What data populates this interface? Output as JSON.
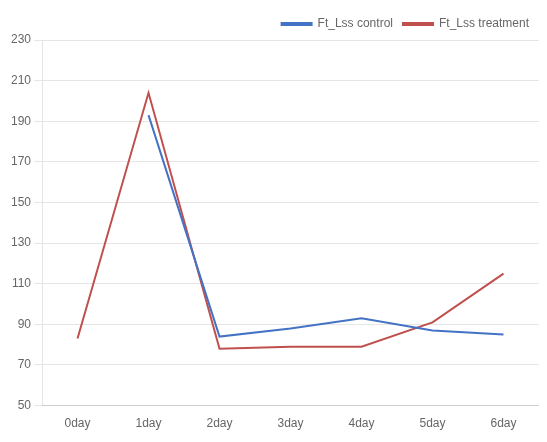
{
  "chart_data": {
    "type": "line",
    "categories": [
      "0day",
      "1day",
      "2day",
      "3day",
      "4day",
      "5day",
      "6day"
    ],
    "series": [
      {
        "name": "Ft_Lss control",
        "color": "#4472C4",
        "values": [
          null,
          193,
          84,
          88,
          93,
          87,
          85
        ]
      },
      {
        "name": "Ft_Lss treatment",
        "color": "#C0504D",
        "values": [
          83,
          204,
          78,
          79,
          79,
          91,
          115
        ]
      }
    ],
    "ylim": [
      50,
      230
    ],
    "yticks": [
      50,
      70,
      90,
      110,
      130,
      150,
      170,
      190,
      210,
      230
    ],
    "grid": "y",
    "legend": "upper right"
  }
}
